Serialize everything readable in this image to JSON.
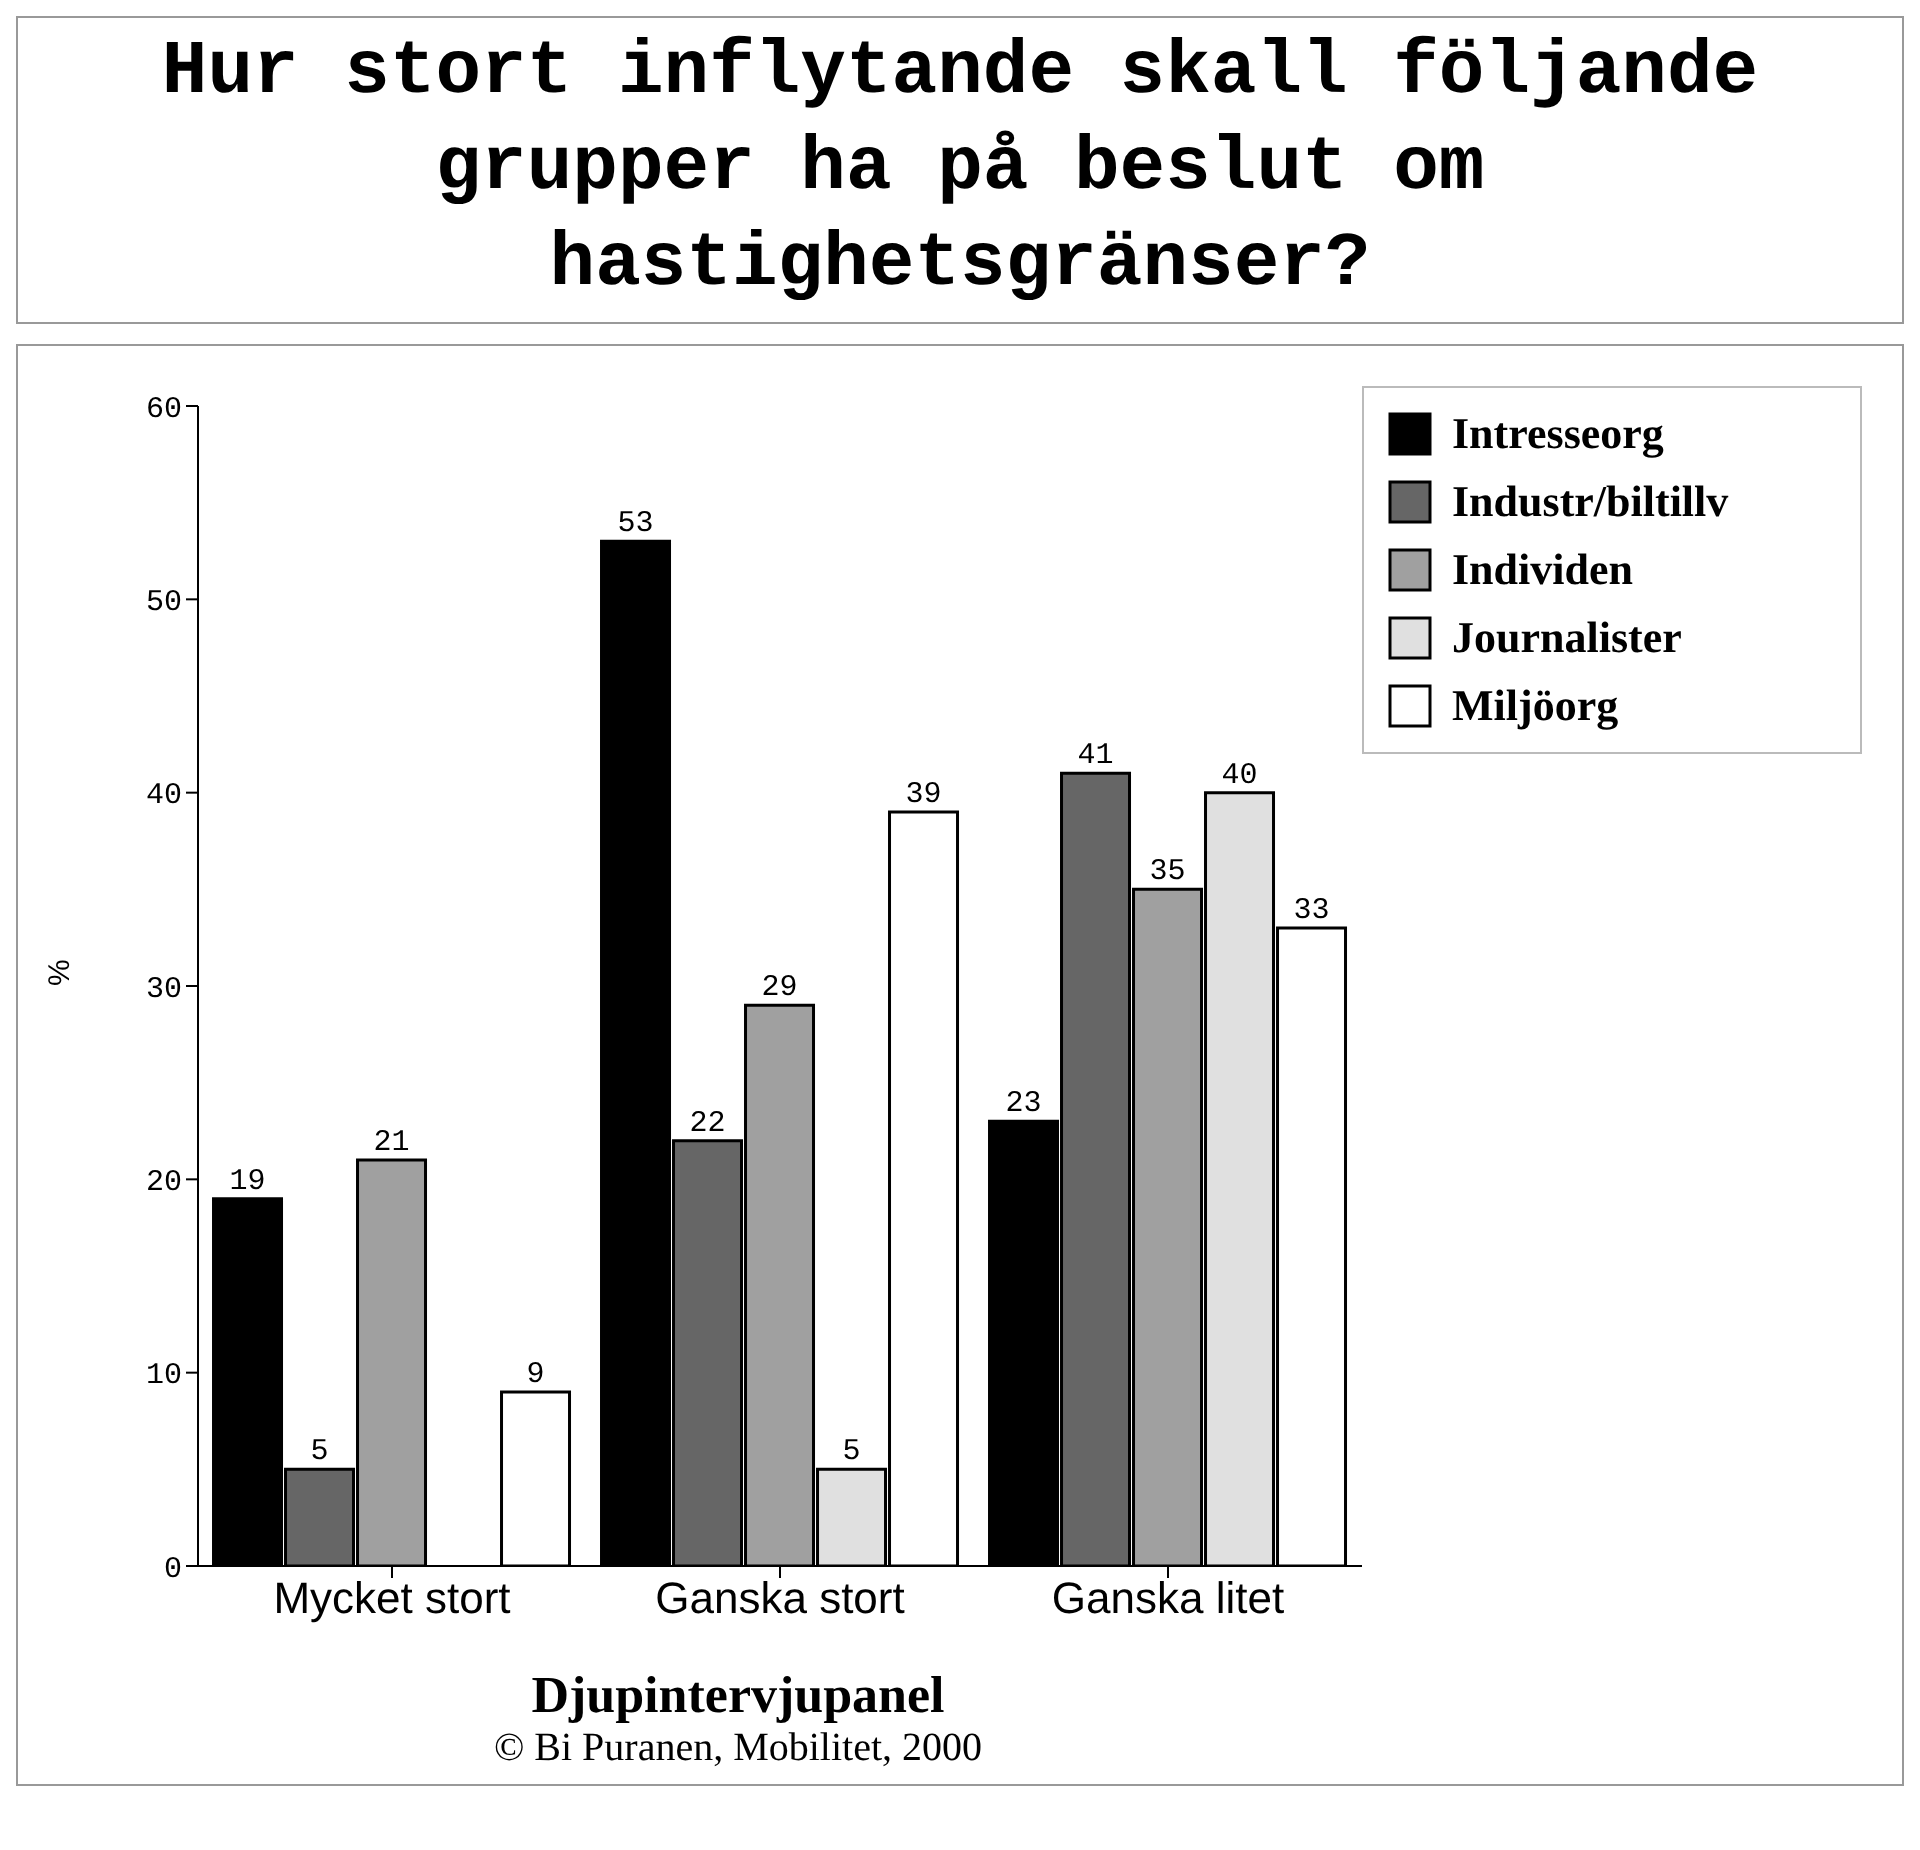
{
  "chart_data": {
    "type": "bar",
    "title": "Hur stort inflytande skall följande grupper ha på beslut om hastighetsgränser?",
    "ylabel": "%",
    "categories": [
      "Mycket stort",
      "Ganska stort",
      "Ganska litet"
    ],
    "series": [
      {
        "name": "Intresseorg",
        "color": "#000000",
        "values": [
          19,
          53,
          23
        ]
      },
      {
        "name": "Industr/biltillv",
        "color": "#666666",
        "values": [
          5,
          22,
          41
        ]
      },
      {
        "name": "Individen",
        "color": "#a0a0a0",
        "values": [
          21,
          29,
          35
        ]
      },
      {
        "name": "Journalister",
        "color": "#e0e0e0",
        "values": [
          null,
          5,
          40
        ]
      },
      {
        "name": "Miljöorg",
        "color": "#ffffff",
        "values": [
          9,
          39,
          33
        ]
      }
    ],
    "ylim": [
      0,
      60
    ],
    "yticks": [
      0,
      10,
      20,
      30,
      40,
      50,
      60
    ],
    "grid": false,
    "legend": "top right",
    "data_labels": true,
    "annotations": [
      "Djupintervjupanel",
      "© Bi Puranen, Mobilitet, 2000"
    ]
  }
}
